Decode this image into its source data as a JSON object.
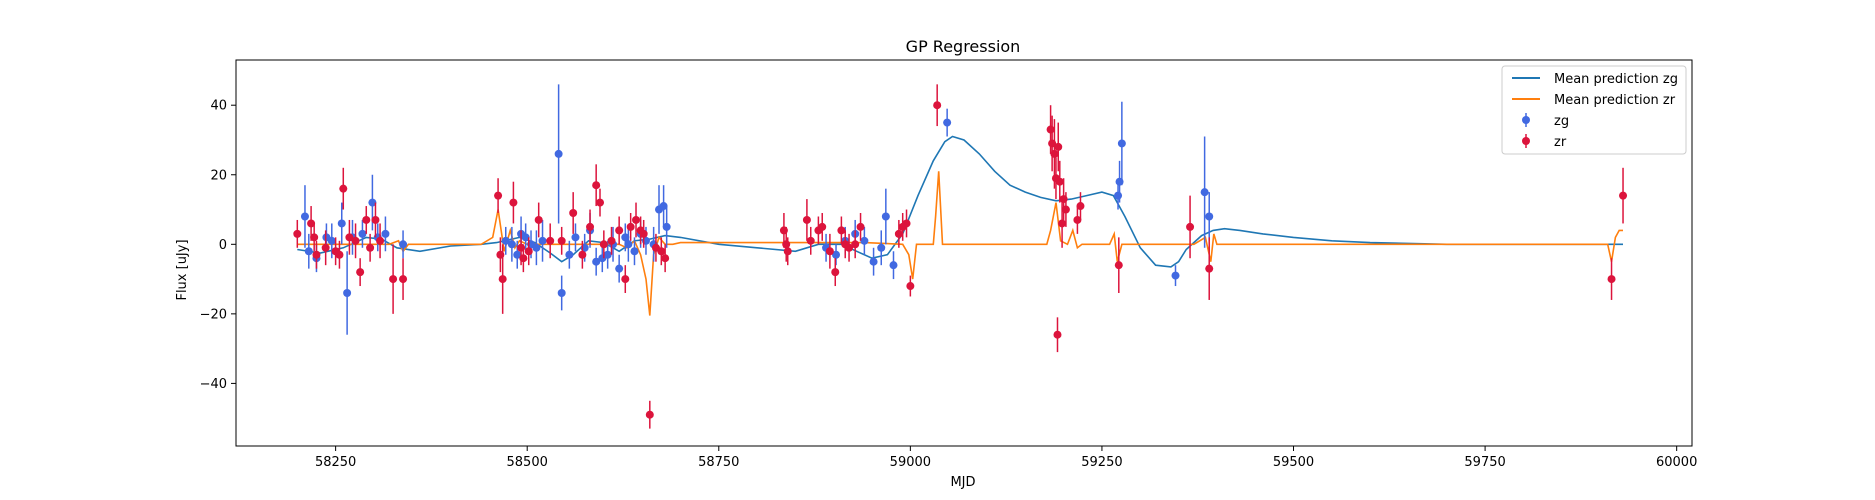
{
  "chart_data": {
    "type": "scatter",
    "title": "GP Regression",
    "xlabel": "MJD",
    "ylabel": "Flux [uJy]",
    "xlim": [
      58120,
      60020
    ],
    "ylim": [
      -58,
      53
    ],
    "xticks": [
      58250,
      58500,
      58750,
      59000,
      59250,
      59500,
      59750,
      60000
    ],
    "yticks": [
      -40,
      -20,
      0,
      20,
      40
    ],
    "grid": false,
    "legend_position": "top-right",
    "colors": {
      "zg_line": "#1f77b4",
      "zr_line": "#ff7f0e",
      "zg_points": "#4169e1",
      "zr_points": "#dc143c"
    },
    "series": [
      {
        "name": "Mean prediction zg",
        "kind": "line",
        "x": [
          58200,
          58230,
          58260,
          58290,
          58310,
          58330,
          58360,
          58400,
          58440,
          58460,
          58490,
          58510,
          58530,
          58545,
          58560,
          58580,
          58600,
          58620,
          58640,
          58660,
          58680,
          58700,
          58750,
          58800,
          58850,
          58880,
          58910,
          58930,
          58950,
          58970,
          58990,
          59010,
          59030,
          59045,
          59055,
          59070,
          59090,
          59110,
          59130,
          59150,
          59170,
          59190,
          59210,
          59230,
          59250,
          59265,
          59280,
          59300,
          59320,
          59340,
          59350,
          59360,
          59380,
          59395,
          59410,
          59430,
          59460,
          59500,
          59550,
          59600,
          59700,
          59800,
          59900,
          59930
        ],
        "y": [
          -1.5,
          -2.5,
          -1,
          2,
          1.5,
          -1,
          -2,
          -0.5,
          0,
          0.5,
          2,
          0.5,
          -2.5,
          -5,
          -3,
          1,
          0.5,
          -2,
          1,
          1.5,
          2.5,
          2,
          0,
          -1,
          -2,
          0,
          0,
          -2,
          -4,
          -3,
          3,
          14,
          24,
          29.5,
          31,
          30,
          26,
          21,
          17,
          15,
          13.5,
          12.5,
          13,
          14,
          15,
          14,
          8,
          -1,
          -6,
          -6.5,
          -5,
          -1.5,
          2.5,
          4,
          4.5,
          4,
          3,
          2,
          1,
          0.5,
          0,
          0,
          0,
          0
        ]
      },
      {
        "name": "Mean prediction zr",
        "kind": "line",
        "x": [
          58200,
          58250,
          58300,
          58320,
          58332,
          58338,
          58345,
          58360,
          58440,
          58455,
          58462,
          58470,
          58478,
          58484,
          58490,
          58500,
          58510,
          58580,
          58620,
          58630,
          58640,
          58648,
          58655,
          58660,
          58665,
          58672,
          58680,
          58690,
          58700,
          58940,
          58990,
          58998,
          59003,
          59008,
          59030,
          59033,
          59037,
          59042,
          59178,
          59183,
          59190,
          59196,
          59205,
          59212,
          59218,
          59224,
          59260,
          59266,
          59270,
          59276,
          59370,
          59385,
          59392,
          59396,
          59400,
          59910,
          59915,
          59920,
          59925,
          59930
        ],
        "y": [
          0,
          0,
          0,
          0,
          1,
          -2,
          0,
          0,
          0,
          2,
          10,
          -2,
          4,
          -1,
          1,
          0,
          0,
          0,
          0,
          -1,
          1,
          -3,
          -10,
          -20.5,
          -3,
          2,
          0,
          0,
          0.5,
          0.5,
          0,
          -3,
          -10,
          0,
          0,
          8,
          21,
          0,
          0,
          4,
          12,
          1,
          0,
          4,
          -1,
          0,
          0,
          3,
          -5,
          0,
          0,
          2,
          -5,
          3,
          0,
          0,
          -5,
          2,
          4,
          4
        ]
      },
      {
        "name": "zg",
        "kind": "errorbar",
        "points": [
          [
            58210,
            8,
            9
          ],
          [
            58215,
            -2,
            5
          ],
          [
            58225,
            -4,
            4
          ],
          [
            58238,
            2,
            4
          ],
          [
            58245,
            1,
            5
          ],
          [
            58258,
            6,
            6
          ],
          [
            58265,
            -14,
            12
          ],
          [
            58272,
            2,
            5
          ],
          [
            58285,
            3,
            4
          ],
          [
            58298,
            12,
            8
          ],
          [
            58305,
            2,
            4
          ],
          [
            58315,
            3,
            5
          ],
          [
            58338,
            0,
            4
          ],
          [
            58472,
            1,
            4
          ],
          [
            58480,
            0,
            5
          ],
          [
            58487,
            -3,
            4
          ],
          [
            58492,
            3,
            5
          ],
          [
            58498,
            2,
            4
          ],
          [
            58505,
            0,
            4
          ],
          [
            58512,
            -1,
            5
          ],
          [
            58520,
            1,
            6
          ],
          [
            58541,
            26,
            20
          ],
          [
            58545,
            -14,
            5
          ],
          [
            58555,
            -3,
            4
          ],
          [
            58563,
            2,
            4
          ],
          [
            58575,
            -1,
            4
          ],
          [
            58582,
            4,
            5
          ],
          [
            58590,
            -5,
            4
          ],
          [
            58598,
            -4,
            4
          ],
          [
            58605,
            -3,
            4
          ],
          [
            58612,
            0,
            5
          ],
          [
            58620,
            -7,
            4
          ],
          [
            58628,
            2,
            4
          ],
          [
            58632,
            0,
            5
          ],
          [
            58640,
            -2,
            4
          ],
          [
            58648,
            3,
            4
          ],
          [
            58655,
            1,
            4
          ],
          [
            58665,
            0,
            5
          ],
          [
            58672,
            10,
            7
          ],
          [
            58678,
            11,
            6
          ],
          [
            58682,
            5,
            6
          ],
          [
            58890,
            -1,
            4
          ],
          [
            58903,
            -3,
            3
          ],
          [
            58915,
            1,
            4
          ],
          [
            58928,
            3,
            4
          ],
          [
            58940,
            1,
            4
          ],
          [
            58952,
            -5,
            4
          ],
          [
            58962,
            -1,
            5
          ],
          [
            58968,
            8,
            8
          ],
          [
            58978,
            -6,
            4
          ],
          [
            59048,
            35,
            4
          ],
          [
            59271,
            14,
            4
          ],
          [
            59273,
            18,
            6
          ],
          [
            59276,
            29,
            12
          ],
          [
            59346,
            -9,
            3
          ],
          [
            59384,
            15,
            16
          ],
          [
            59390,
            8,
            7
          ]
        ]
      },
      {
        "name": "zr",
        "kind": "errorbar",
        "points": [
          [
            58200,
            3,
            4
          ],
          [
            58218,
            6,
            5
          ],
          [
            58222,
            2,
            4
          ],
          [
            58225,
            -3,
            4
          ],
          [
            58237,
            -1,
            5
          ],
          [
            58250,
            -2,
            4
          ],
          [
            58255,
            -3,
            4
          ],
          [
            58260,
            16,
            6
          ],
          [
            58268,
            2,
            5
          ],
          [
            58276,
            1,
            5
          ],
          [
            58282,
            -8,
            4
          ],
          [
            58290,
            7,
            4
          ],
          [
            58295,
            -1,
            4
          ],
          [
            58302,
            7,
            5
          ],
          [
            58308,
            1,
            5
          ],
          [
            58325,
            -10,
            10
          ],
          [
            58338,
            -10,
            6
          ],
          [
            58462,
            14,
            5
          ],
          [
            58465,
            -3,
            5
          ],
          [
            58468,
            -10,
            10
          ],
          [
            58482,
            12,
            6
          ],
          [
            58492,
            -1,
            5
          ],
          [
            58495,
            -4,
            4
          ],
          [
            58502,
            -2,
            4
          ],
          [
            58515,
            7,
            5
          ],
          [
            58530,
            1,
            5
          ],
          [
            58545,
            1,
            4
          ],
          [
            58560,
            9,
            6
          ],
          [
            58572,
            -3,
            4
          ],
          [
            58582,
            5,
            5
          ],
          [
            58590,
            17,
            6
          ],
          [
            58595,
            12,
            4
          ],
          [
            58600,
            0,
            4
          ],
          [
            58610,
            1,
            4
          ],
          [
            58620,
            4,
            4
          ],
          [
            58628,
            -10,
            4
          ],
          [
            58635,
            5,
            4
          ],
          [
            58642,
            7,
            5
          ],
          [
            58648,
            4,
            4
          ],
          [
            58652,
            3,
            4
          ],
          [
            58660,
            -49,
            4
          ],
          [
            58668,
            -1,
            4
          ],
          [
            58675,
            -2,
            4
          ],
          [
            58680,
            -4,
            4
          ],
          [
            58835,
            4,
            5
          ],
          [
            58838,
            0,
            5
          ],
          [
            58840,
            -2,
            4
          ],
          [
            58865,
            7,
            6
          ],
          [
            58870,
            1,
            4
          ],
          [
            58880,
            4,
            4
          ],
          [
            58885,
            5,
            4
          ],
          [
            58895,
            -2,
            5
          ],
          [
            58902,
            -8,
            4
          ],
          [
            58910,
            4,
            4
          ],
          [
            58915,
            0,
            4
          ],
          [
            58920,
            -1,
            4
          ],
          [
            58928,
            0,
            4
          ],
          [
            58935,
            5,
            4
          ],
          [
            58985,
            3,
            4
          ],
          [
            58990,
            5,
            4
          ],
          [
            58995,
            6,
            4
          ],
          [
            59000,
            -12,
            3
          ],
          [
            59035,
            40,
            6
          ],
          [
            59183,
            33,
            7
          ],
          [
            59185,
            29,
            8
          ],
          [
            59188,
            26,
            10
          ],
          [
            59190,
            19,
            6
          ],
          [
            59193,
            28,
            7
          ],
          [
            59195,
            18,
            6
          ],
          [
            59198,
            6,
            7
          ],
          [
            59200,
            13,
            6
          ],
          [
            59203,
            10,
            5
          ],
          [
            59192,
            -26,
            5
          ],
          [
            59218,
            7,
            4
          ],
          [
            59222,
            11,
            4
          ],
          [
            59272,
            -6,
            8
          ],
          [
            59365,
            5,
            9
          ],
          [
            59390,
            -7,
            9
          ],
          [
            59915,
            -10,
            6
          ],
          [
            59930,
            14,
            8
          ]
        ]
      }
    ]
  }
}
